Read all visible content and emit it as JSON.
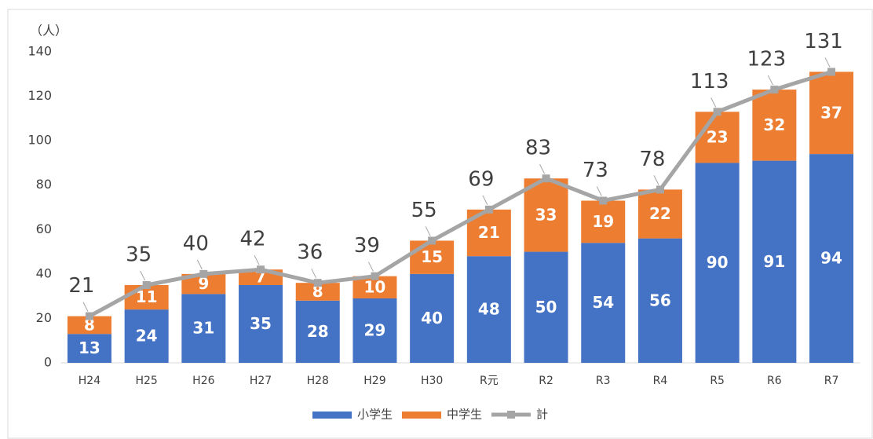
{
  "chart_data": {
    "type": "bar",
    "stacked": true,
    "y_unit_label": "（人）",
    "categories": [
      "H24",
      "H25",
      "H26",
      "H27",
      "H28",
      "H29",
      "H30",
      "R元",
      "R2",
      "R3",
      "R4",
      "R5",
      "R6",
      "R7"
    ],
    "series": [
      {
        "name": "小学生",
        "color": "#4472c4",
        "values": [
          13,
          24,
          31,
          35,
          28,
          29,
          40,
          48,
          50,
          54,
          56,
          90,
          91,
          94
        ]
      },
      {
        "name": "中学生",
        "color": "#ed7d31",
        "values": [
          8,
          11,
          9,
          7,
          8,
          10,
          15,
          21,
          33,
          19,
          22,
          23,
          32,
          37
        ]
      },
      {
        "name": "計",
        "type": "line",
        "color": "#a5a5a5",
        "values": [
          21,
          35,
          40,
          42,
          36,
          39,
          55,
          69,
          83,
          73,
          78,
          113,
          123,
          131
        ]
      }
    ],
    "ylim": [
      0,
      140
    ],
    "yticks": [
      0,
      20,
      40,
      60,
      80,
      100,
      120,
      140
    ],
    "grid": false,
    "legend": "bottom"
  }
}
